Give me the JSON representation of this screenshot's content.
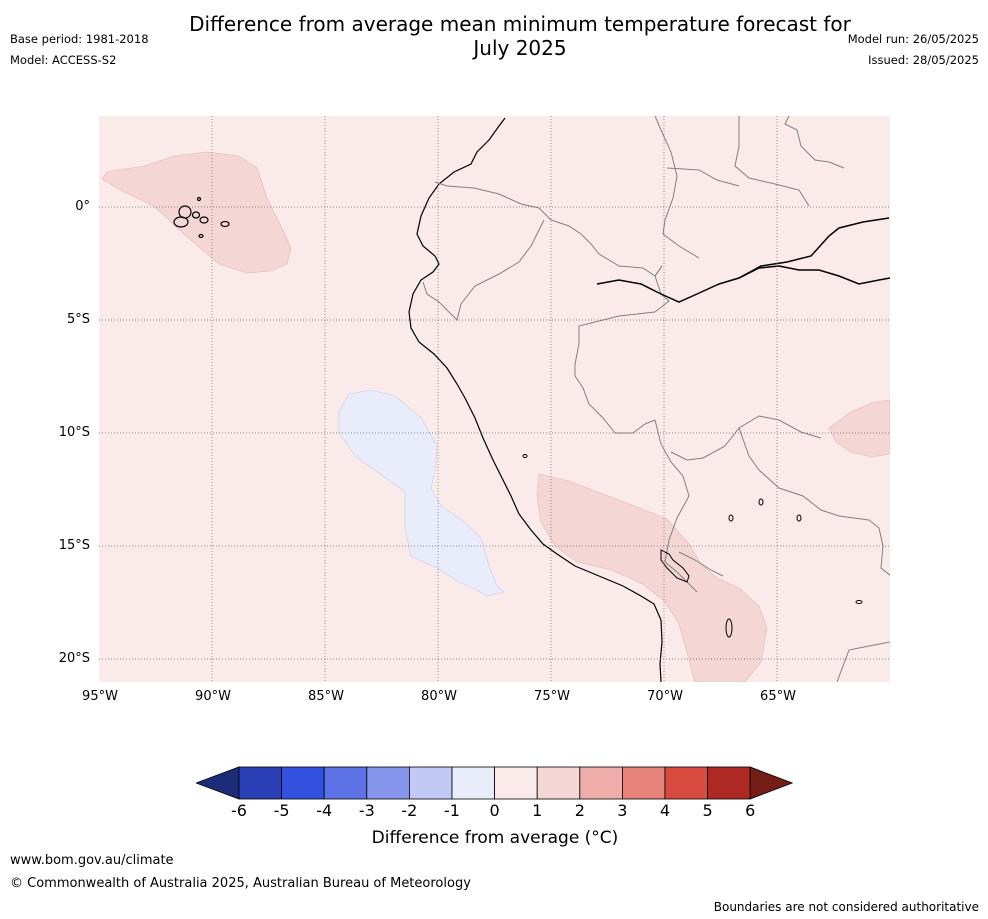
{
  "title_line1": "Difference from average mean minimum temperature forecast for",
  "title_line2": "July 2025",
  "meta_left": {
    "base_period": "Base period: 1981-2018",
    "model": "Model: ACCESS-S2"
  },
  "meta_right": {
    "model_run": "Model run: 26/05/2025",
    "issued": "Issued: 28/05/2025"
  },
  "map": {
    "region": "South America (Ecuador, Peru, Bolivia, northern Chile)",
    "background_anomaly": "0 to 1",
    "lat_labels": [
      "0°",
      "5°S",
      "10°S",
      "15°S",
      "20°S"
    ],
    "lon_labels": [
      "95°W",
      "90°W",
      "85°W",
      "80°W",
      "75°W",
      "70°W",
      "65°W"
    ],
    "regions": [
      {
        "name": "galapagos-warm-area",
        "anomaly": "1 to 2"
      },
      {
        "name": "offshore-peru-cool-area",
        "anomaly": "-1 to 0"
      },
      {
        "name": "southern-peru-warm-area",
        "anomaly": "1 to 2"
      },
      {
        "name": "eastern-warm-area",
        "anomaly": "1 to 2"
      }
    ]
  },
  "colorbar": {
    "ticks": [
      "-6",
      "-5",
      "-4",
      "-3",
      "-2",
      "-1",
      "0",
      "1",
      "2",
      "3",
      "4",
      "5",
      "6"
    ],
    "colors": [
      "#1c2d78",
      "#2b3fb6",
      "#3150e0",
      "#5c72e6",
      "#8696ec",
      "#c2c9f4",
      "#e9ecfb",
      "#fbeaea",
      "#f4d6d4",
      "#eeada9",
      "#e6847c",
      "#da4b3f",
      "#ac2a23",
      "#741d16"
    ],
    "label": "Difference from average (°C)"
  },
  "footer": {
    "url": "www.bom.gov.au/climate",
    "copyright": "© Commonwealth of Australia 2025, Australian Bureau of Meteorology",
    "boundaries_note": "Boundaries are not considered authoritative"
  }
}
